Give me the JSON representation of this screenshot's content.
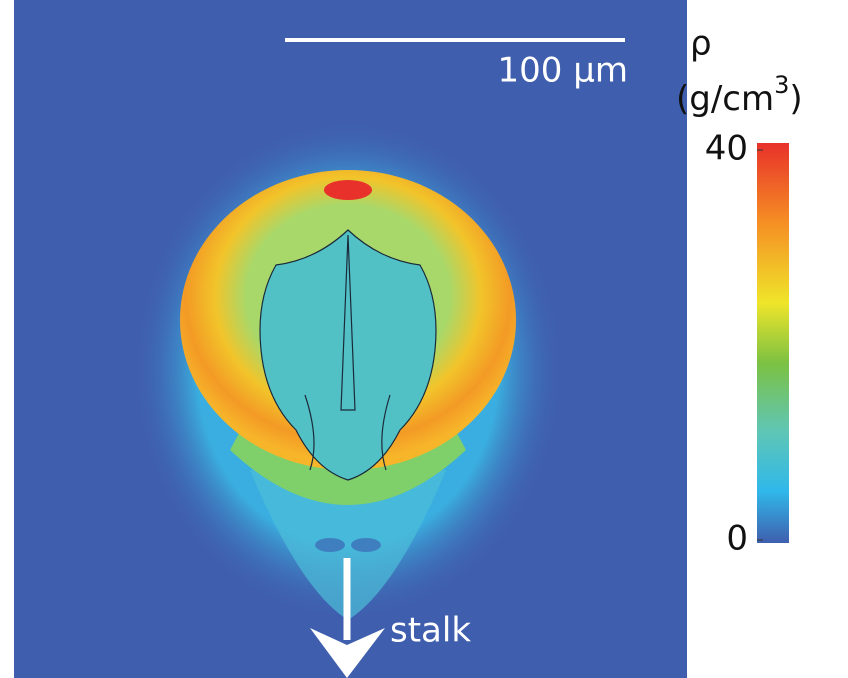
{
  "scale_bar": {
    "label": "100 µm"
  },
  "annotation": "stalk",
  "colorbar": {
    "symbol": "ρ",
    "unit": [
      "(g/cm",
      "3",
      ")"
    ],
    "lim": [
      0,
      40
    ],
    "ticks": [
      0,
      40
    ]
  }
}
